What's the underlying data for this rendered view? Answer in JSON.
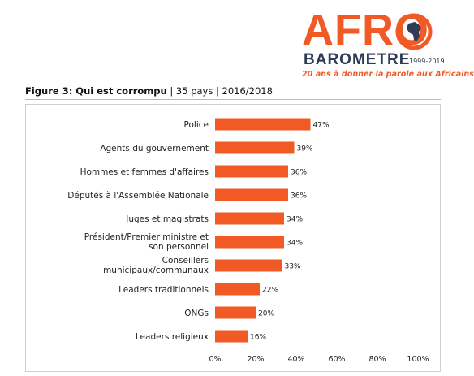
{
  "logo": {
    "text": "AFRO",
    "brand": "BAROMETRE",
    "years": "1999-2019",
    "tagline": "20 ans à donner la parole aux Africains",
    "colors": {
      "orange": "#f15a24",
      "navy": "#2e3c56"
    }
  },
  "figure": {
    "label": "Figure 3: Qui est corrompu",
    "meta": " | 35 pays | 2016/2018"
  },
  "chart_data": {
    "type": "bar",
    "orientation": "horizontal",
    "categories": [
      "Police",
      "Agents du gouvernement",
      "Hommes et femmes d'affaires",
      "Députés à l'Assemblée Nationale",
      "Juges et magistrats",
      "Président/Premier ministre et son personnel",
      "Conseillers municipaux/communaux",
      "Leaders traditionnels",
      "ONGs",
      "Leaders religieux"
    ],
    "values": [
      47,
      39,
      36,
      36,
      34,
      34,
      33,
      22,
      20,
      16
    ],
    "value_labels": [
      "47%",
      "39%",
      "36%",
      "36%",
      "34%",
      "34%",
      "33%",
      "22%",
      "20%",
      "16%"
    ],
    "xlim": [
      0,
      100
    ],
    "ticks": [
      "0%",
      "20%",
      "40%",
      "60%",
      "80%",
      "100%"
    ],
    "grid": false,
    "legend": "none",
    "bar_color": "#f15a24"
  }
}
